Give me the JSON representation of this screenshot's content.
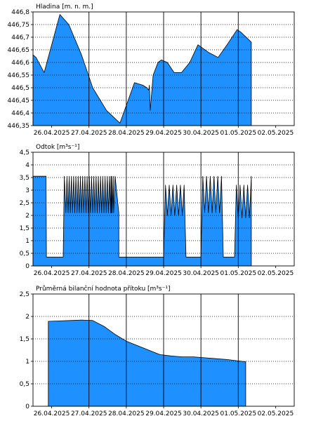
{
  "chart_data": [
    {
      "type": "area",
      "title": "Hladina [m. n. m.]",
      "x_tick_labels": [
        "26.04.2025",
        "27.04.2025",
        "28.04.2025",
        "29.04.2025",
        "30.04.2025",
        "01.05.2025",
        "02.05.2025"
      ],
      "y_tick_labels": [
        "446,35",
        "446,4",
        "446,45",
        "446,5",
        "446,55",
        "446,6",
        "446,65",
        "446,7",
        "446,75",
        "446,8"
      ],
      "xlim": [
        0,
        7
      ],
      "ylim": [
        446.35,
        446.8
      ],
      "x_ticks": [
        0.5,
        1.5,
        2.5,
        3.5,
        4.5,
        5.5,
        6.5
      ],
      "y_ticks": [
        446.35,
        446.4,
        446.45,
        446.5,
        446.55,
        446.6,
        446.65,
        446.7,
        446.75,
        446.8
      ],
      "grid_x": [
        1.5,
        2.5,
        3.5,
        4.5,
        5.5
      ],
      "fill_color": "#1e90ff",
      "x": [
        0,
        0.08,
        0.3,
        0.72,
        0.96,
        1.3,
        1.6,
        1.97,
        2.33,
        2.5,
        2.72,
        2.94,
        3.05,
        3.1,
        3.12,
        3.14,
        3.22,
        3.35,
        3.44,
        3.6,
        3.78,
        3.98,
        4.2,
        4.42,
        4.7,
        4.96,
        5.2,
        5.47,
        5.57,
        5.78,
        5.85
      ],
      "y": [
        446.63,
        446.62,
        446.56,
        446.79,
        446.75,
        446.63,
        446.5,
        446.41,
        446.36,
        446.43,
        446.52,
        446.51,
        446.5,
        446.49,
        446.51,
        446.41,
        446.55,
        446.6,
        446.61,
        446.6,
        446.56,
        446.56,
        446.6,
        446.67,
        446.64,
        446.62,
        446.67,
        446.73,
        446.72,
        446.69,
        446.68
      ]
    },
    {
      "type": "area",
      "title": "Odtok [m³s⁻¹]",
      "x_tick_labels": [
        "26.04.2025",
        "27.04.2025",
        "28.04.2025",
        "29.04.2025",
        "30.04.2025",
        "01.05.2025",
        "02.05.2025"
      ],
      "y_tick_labels": [
        "0",
        "0,5",
        "1",
        "1,5",
        "2",
        "2,5",
        "3",
        "3,5",
        "4",
        "4,5"
      ],
      "xlim": [
        0,
        7
      ],
      "ylim": [
        0,
        4.5
      ],
      "x_ticks": [
        0.5,
        1.5,
        2.5,
        3.5,
        4.5,
        5.5,
        6.5
      ],
      "y_ticks": [
        0,
        0.5,
        1,
        1.5,
        2,
        2.5,
        3,
        3.5,
        4,
        4.5
      ],
      "grid_x": [
        1.5,
        2.5,
        3.5,
        4.5,
        5.5
      ],
      "fill_color": "#1e90ff",
      "x": [
        0,
        0.13,
        0.14,
        0.35,
        0.36,
        0.8,
        0.81,
        0.84,
        0.88,
        0.91,
        0.94,
        0.97,
        1.0,
        1.03,
        1.06,
        1.09,
        1.12,
        1.15,
        1.18,
        1.21,
        1.24,
        1.27,
        1.3,
        1.33,
        1.36,
        1.39,
        1.42,
        1.45,
        1.48,
        1.51,
        1.54,
        1.57,
        1.6,
        1.63,
        1.66,
        1.69,
        1.72,
        1.75,
        1.78,
        1.81,
        1.84,
        1.87,
        1.9,
        1.93,
        1.96,
        1.99,
        2.02,
        2.05,
        2.08,
        2.09,
        2.1,
        2.11,
        2.12,
        2.15,
        2.16,
        2.2,
        2.3,
        2.3,
        2.8,
        2.9,
        3.0,
        3.1,
        3.2,
        3.3,
        3.4,
        3.5,
        3.55,
        3.6,
        3.65,
        3.7,
        3.75,
        3.8,
        3.85,
        3.9,
        3.95,
        4.0,
        4.05,
        4.1,
        4.15,
        4.2,
        4.25,
        4.3,
        4.35,
        4.4,
        4.45,
        4.5,
        4.55,
        4.6,
        4.65,
        4.7,
        4.75,
        4.8,
        4.85,
        4.9,
        4.95,
        5.0,
        5.05,
        5.1,
        5.15,
        5.2,
        5.25,
        5.3,
        5.35,
        5.4,
        5.45,
        5.5,
        5.55,
        5.6,
        5.65,
        5.7,
        5.75,
        5.8,
        5.85
      ],
      "y": [
        3.55,
        3.55,
        3.55,
        3.55,
        0.35,
        0.35,
        0.35,
        3.55,
        2.1,
        3.55,
        2.1,
        3.55,
        2.1,
        3.55,
        2.1,
        3.55,
        2.1,
        3.55,
        2.1,
        3.55,
        2.1,
        3.55,
        2.1,
        3.55,
        2.1,
        3.55,
        2.1,
        3.55,
        2.1,
        3.55,
        2.1,
        3.55,
        2.1,
        3.55,
        2.1,
        3.55,
        2.1,
        3.55,
        2.1,
        3.55,
        2.1,
        3.55,
        2.1,
        3.55,
        2.1,
        3.55,
        2.1,
        3.55,
        2.1,
        3.55,
        2.1,
        3.55,
        2.1,
        3.55,
        2.1,
        3.55,
        2.1,
        0.35,
        0.35,
        0.35,
        0.35,
        0.35,
        0.35,
        0.35,
        0.35,
        0.35,
        3.2,
        2.0,
        3.2,
        2.0,
        3.2,
        2.0,
        3.2,
        2.0,
        3.2,
        2.0,
        3.2,
        0.35,
        0.35,
        0.35,
        0.35,
        0.35,
        0.35,
        0.35,
        0.35,
        0.35,
        3.55,
        2.1,
        3.55,
        2.1,
        3.55,
        2.1,
        3.55,
        2.1,
        3.55,
        2.1,
        3.55,
        0.35,
        0.35,
        0.35,
        0.35,
        0.35,
        0.35,
        0.35,
        3.2,
        1.9,
        3.2,
        1.9,
        3.2,
        1.9,
        3.2,
        1.9,
        3.55
      ]
    },
    {
      "type": "area",
      "title": "Průměrná bilanční hodnota přítoku   [m³s⁻¹]",
      "x_tick_labels": [
        "26.04.2025",
        "27.04.2025",
        "28.04.2025",
        "29.04.2025",
        "30.04.2025",
        "01.05.2025",
        "02.05.2025"
      ],
      "y_tick_labels": [
        "0",
        "0,5",
        "1",
        "1,5",
        "2",
        "2,5"
      ],
      "xlim": [
        0,
        7
      ],
      "ylim": [
        0,
        2.5
      ],
      "x_ticks": [
        0.5,
        1.5,
        2.5,
        3.5,
        4.5,
        5.5,
        6.5
      ],
      "y_ticks": [
        0,
        0.5,
        1,
        1.5,
        2,
        2.5
      ],
      "grid_x": [
        1.5,
        2.5,
        3.5,
        4.5,
        5.5
      ],
      "fill_color": "#1e90ff",
      "x": [
        0.41,
        0.7,
        1.0,
        1.3,
        1.6,
        1.9,
        2.2,
        2.5,
        2.8,
        3.1,
        3.4,
        3.7,
        4.0,
        4.3,
        4.6,
        4.9,
        5.2,
        5.5,
        5.7
      ],
      "y": [
        1.89,
        1.9,
        1.91,
        1.92,
        1.91,
        1.78,
        1.6,
        1.45,
        1.35,
        1.25,
        1.15,
        1.12,
        1.1,
        1.1,
        1.08,
        1.06,
        1.04,
        1.01,
        0.99
      ]
    }
  ]
}
